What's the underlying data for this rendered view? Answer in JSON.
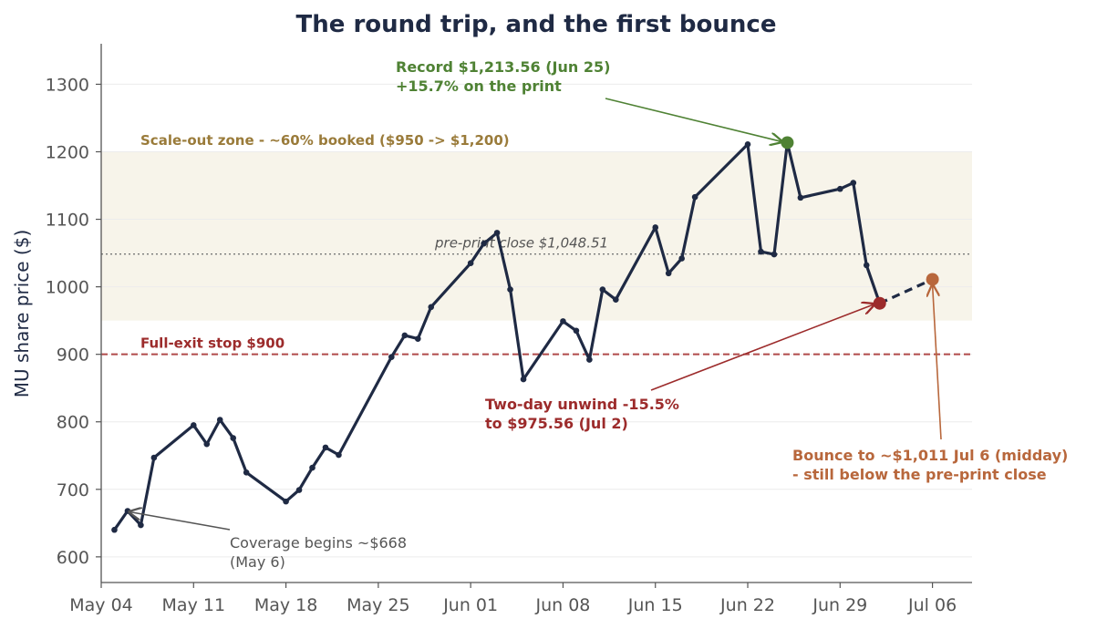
{
  "chart_data": {
    "type": "line",
    "title": "The round trip, and the first bounce",
    "xlabel": "",
    "ylabel": "MU share price ($)",
    "ylim": [
      562,
      1360
    ],
    "xlim": [
      "2026-05-04",
      "2026-07-09"
    ],
    "x_ticks": [
      {
        "date": "2026-05-04",
        "label": "May 04"
      },
      {
        "date": "2026-05-11",
        "label": "May 11"
      },
      {
        "date": "2026-05-18",
        "label": "May 18"
      },
      {
        "date": "2026-05-25",
        "label": "May 25"
      },
      {
        "date": "2026-06-01",
        "label": "Jun 01"
      },
      {
        "date": "2026-06-08",
        "label": "Jun 08"
      },
      {
        "date": "2026-06-15",
        "label": "Jun 15"
      },
      {
        "date": "2026-06-22",
        "label": "Jun 22"
      },
      {
        "date": "2026-06-29",
        "label": "Jun 29"
      },
      {
        "date": "2026-07-06",
        "label": "Jul 06"
      }
    ],
    "y_ticks": [
      600,
      700,
      800,
      900,
      1000,
      1100,
      1200,
      1300
    ],
    "grid": "horizontal",
    "series": [
      {
        "x": [
          "2026-05-05",
          "2026-05-06",
          "2026-05-07",
          "2026-05-08",
          "2026-05-11",
          "2026-05-12",
          "2026-05-13",
          "2026-05-14",
          "2026-05-15",
          "2026-05-18",
          "2026-05-19",
          "2026-05-20",
          "2026-05-21",
          "2026-05-22",
          "2026-05-26",
          "2026-05-27",
          "2026-05-28",
          "2026-05-29",
          "2026-06-01",
          "2026-06-02",
          "2026-06-03",
          "2026-06-04",
          "2026-06-05",
          "2026-06-08",
          "2026-06-09",
          "2026-06-10",
          "2026-06-11",
          "2026-06-12",
          "2026-06-15",
          "2026-06-16",
          "2026-06-17",
          "2026-06-18",
          "2026-06-22",
          "2026-06-23",
          "2026-06-24",
          "2026-06-25",
          "2026-06-26",
          "2026-06-29",
          "2026-06-30",
          "2026-07-01",
          "2026-07-02"
        ],
        "values": [
          640,
          668,
          647,
          747,
          795,
          767,
          803,
          776,
          725,
          682,
          699,
          732,
          762,
          751,
          896,
          928,
          923,
          970,
          1035,
          1064,
          1080,
          996,
          863,
          949,
          935,
          892,
          996,
          981,
          1088,
          1020,
          1042,
          1133,
          1211,
          1052,
          1048,
          1213.56,
          1132,
          1145,
          1154,
          1032,
          975.56
        ],
        "color": "#1f2a44"
      },
      {
        "x": [
          "2026-07-02",
          "2026-07-06"
        ],
        "values": [
          975.56,
          1011
        ],
        "color": "#1f2a44",
        "style": "dashed"
      }
    ],
    "bands": [
      {
        "from": 950,
        "to": 1200,
        "color": "#f7f4ea",
        "label": "Scale-out zone - ~60% booked ($950 -> $1,200)",
        "label_color": "#9a7b3a"
      }
    ],
    "hlines": [
      {
        "y": 1048.51,
        "style": "dotted",
        "color": "#777777",
        "label": "pre-print close $1,048.51"
      },
      {
        "y": 900,
        "style": "dashed",
        "color": "#b04a4a",
        "label": "Full-exit stop $900",
        "label_color": "#9c2b2b"
      }
    ],
    "markers": [
      {
        "date": "2026-06-25",
        "value": 1213.56,
        "color": "#4f8234"
      },
      {
        "date": "2026-07-02",
        "value": 975.56,
        "color": "#9c2b2b"
      },
      {
        "date": "2026-07-06",
        "value": 1011,
        "color": "#b8673c"
      }
    ],
    "annotations": [
      {
        "lines": [
          "Record $1,213.56 (Jun 25)",
          "+15.7% on the print"
        ],
        "color": "#4f8234",
        "bold": true
      },
      {
        "lines": [
          "Two-day unwind -15.5%",
          "to $975.56 (Jul 2)"
        ],
        "color": "#9c2b2b",
        "bold": true
      },
      {
        "lines": [
          "Bounce to ~$1,011 Jul 6 (midday)",
          "- still below the pre-print close"
        ],
        "color": "#b8673c",
        "bold": true
      },
      {
        "lines": [
          "Coverage begins ~$668",
          "(May 6)"
        ],
        "color": "#555555",
        "bold": false
      }
    ]
  }
}
